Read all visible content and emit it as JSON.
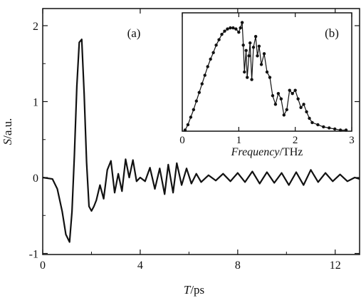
{
  "chart_data": [
    {
      "panel": "(a)",
      "type": "line",
      "xlabel": {
        "var": "T",
        "unit": "/ps"
      },
      "ylabel": {
        "var": "S",
        "unit": "/a.u."
      },
      "xlim": [
        0,
        13
      ],
      "ylim": [
        -1,
        2.2
      ],
      "xticks": [
        "0",
        "4",
        "8",
        "12"
      ],
      "yticks": [
        "-1",
        "0",
        "1",
        "2"
      ],
      "series": [
        {
          "x": [
            0,
            0.4,
            0.6,
            0.8,
            0.95,
            1.1,
            1.2,
            1.3,
            1.4,
            1.5,
            1.6,
            1.7,
            1.8,
            1.9,
            2.0,
            2.1,
            2.2,
            2.35,
            2.5,
            2.65,
            2.8,
            2.95,
            3.1,
            3.25,
            3.4,
            3.55,
            3.7,
            3.85,
            4.0,
            4.2,
            4.4,
            4.6,
            4.8,
            5.0,
            5.15,
            5.35,
            5.5,
            5.7,
            5.9,
            6.1,
            6.3,
            6.5,
            6.8,
            7.1,
            7.4,
            7.7,
            8.0,
            8.3,
            8.6,
            8.9,
            9.2,
            9.5,
            9.8,
            10.1,
            10.4,
            10.7,
            11.0,
            11.3,
            11.6,
            11.9,
            12.2,
            12.5,
            12.8,
            13.0
          ],
          "y": [
            0,
            -0.02,
            -0.15,
            -0.45,
            -0.75,
            -0.85,
            -0.45,
            0.3,
            1.2,
            1.78,
            1.82,
            1.1,
            0.2,
            -0.38,
            -0.44,
            -0.38,
            -0.3,
            -0.1,
            -0.28,
            0.1,
            0.22,
            -0.2,
            0.05,
            -0.18,
            0.24,
            0.0,
            0.23,
            -0.05,
            0.0,
            -0.05,
            0.13,
            -0.15,
            0.12,
            -0.22,
            0.17,
            -0.2,
            0.19,
            -0.1,
            0.12,
            -0.08,
            0.05,
            -0.06,
            0.03,
            -0.04,
            0.05,
            -0.05,
            0.06,
            -0.06,
            0.08,
            -0.08,
            0.07,
            -0.07,
            0.06,
            -0.1,
            0.07,
            -0.1,
            0.1,
            -0.06,
            0.06,
            -0.05,
            0.04,
            -0.05,
            0.0,
            -0.02
          ]
        }
      ]
    },
    {
      "panel": "(b)",
      "type": "line",
      "markers": true,
      "xlabel": {
        "var": "Frequency",
        "unit": "/THz"
      },
      "xlim": [
        0,
        3
      ],
      "ylim": [
        0,
        1.1
      ],
      "xticks": [
        "0",
        "1",
        "2",
        "3"
      ],
      "series": [
        {
          "x": [
            0.05,
            0.1,
            0.15,
            0.2,
            0.25,
            0.3,
            0.35,
            0.4,
            0.45,
            0.5,
            0.55,
            0.6,
            0.65,
            0.7,
            0.75,
            0.8,
            0.85,
            0.9,
            0.95,
            1.0,
            1.03,
            1.06,
            1.08,
            1.1,
            1.13,
            1.15,
            1.18,
            1.2,
            1.23,
            1.26,
            1.3,
            1.33,
            1.36,
            1.4,
            1.45,
            1.5,
            1.55,
            1.6,
            1.65,
            1.7,
            1.75,
            1.8,
            1.85,
            1.9,
            1.95,
            2.0,
            2.05,
            2.1,
            2.15,
            2.2,
            2.25,
            2.3,
            2.4,
            2.5,
            2.6,
            2.7,
            2.8,
            2.9
          ],
          "y": [
            0.01,
            0.06,
            0.13,
            0.2,
            0.28,
            0.36,
            0.44,
            0.52,
            0.6,
            0.67,
            0.73,
            0.8,
            0.85,
            0.9,
            0.93,
            0.95,
            0.96,
            0.96,
            0.95,
            0.92,
            0.96,
            1.01,
            0.8,
            0.55,
            0.75,
            0.5,
            0.7,
            0.82,
            0.48,
            0.78,
            0.88,
            0.7,
            0.79,
            0.62,
            0.72,
            0.55,
            0.5,
            0.33,
            0.25,
            0.35,
            0.3,
            0.15,
            0.2,
            0.38,
            0.35,
            0.38,
            0.3,
            0.22,
            0.25,
            0.18,
            0.12,
            0.08,
            0.06,
            0.04,
            0.03,
            0.02,
            0.01,
            0.01
          ]
        }
      ]
    }
  ]
}
